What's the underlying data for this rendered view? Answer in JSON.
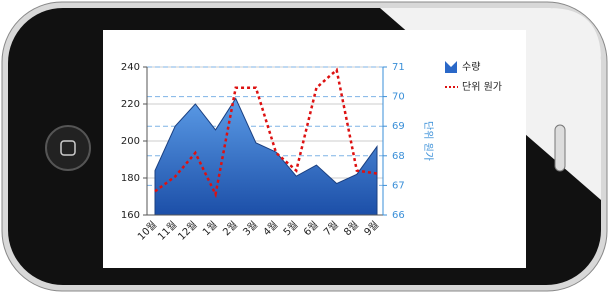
{
  "chart_data": {
    "type": "area-line",
    "categories": [
      "10월",
      "11월",
      "12월",
      "1월",
      "2월",
      "3월",
      "4월",
      "5월",
      "6월",
      "7월",
      "8월",
      "9월"
    ],
    "series": [
      {
        "name": "수량",
        "color": "#2a68c8",
        "values": [
          184,
          208,
          220,
          206,
          223,
          199,
          194,
          181,
          187,
          177,
          182,
          197
        ]
      },
      {
        "name": "단위 원가",
        "color": "#dd1111",
        "axis": "y2",
        "values": [
          66.8,
          67.3,
          68.1,
          66.7,
          70.3,
          70.3,
          68.1,
          67.5,
          70.3,
          70.9,
          67.5,
          67.4
        ]
      }
    ],
    "ylim": [
      160,
      240
    ],
    "yticks": [
      160,
      180,
      200,
      220,
      240
    ],
    "y2lim": [
      66,
      71
    ],
    "y2ticks": [
      66,
      67,
      68,
      69,
      70,
      71
    ],
    "y2label": "단위 원가",
    "grid": true,
    "legend": "right"
  }
}
